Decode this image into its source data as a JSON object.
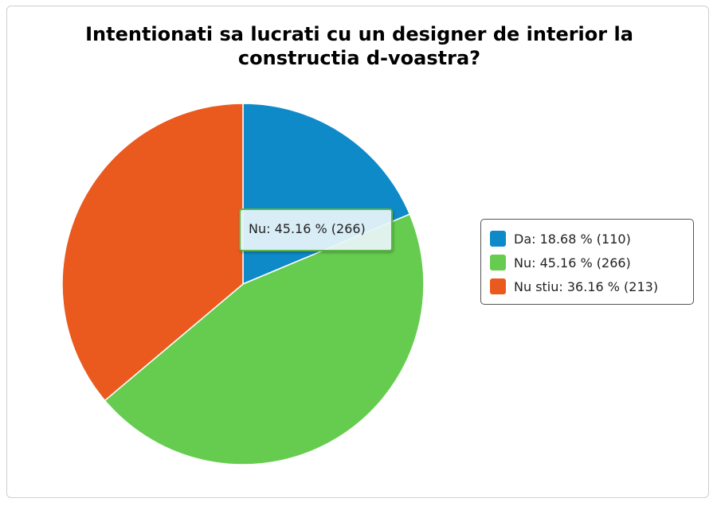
{
  "chart_data": {
    "type": "pie",
    "title": "Intentionati sa lucrati cu un designer de interior la constructia d-voastra?",
    "slices": [
      {
        "label": "Da",
        "percent": 18.68,
        "count": 110,
        "color": "#0e8ac8",
        "legend_text": "Da: 18.68 % (110)"
      },
      {
        "label": "Nu",
        "percent": 45.16,
        "count": 266,
        "color": "#66cc4f",
        "legend_text": "Nu: 45.16 % (266)"
      },
      {
        "label": "Nu stiu",
        "percent": 36.16,
        "count": 213,
        "color": "#ea5a1f",
        "legend_text": "Nu stiu: 36.16 % (213)"
      }
    ],
    "legend_placement": "right",
    "tooltip": {
      "text": "Nu: 45.16 % (266)",
      "slice": "Nu",
      "border_color": "#5bb548"
    }
  }
}
